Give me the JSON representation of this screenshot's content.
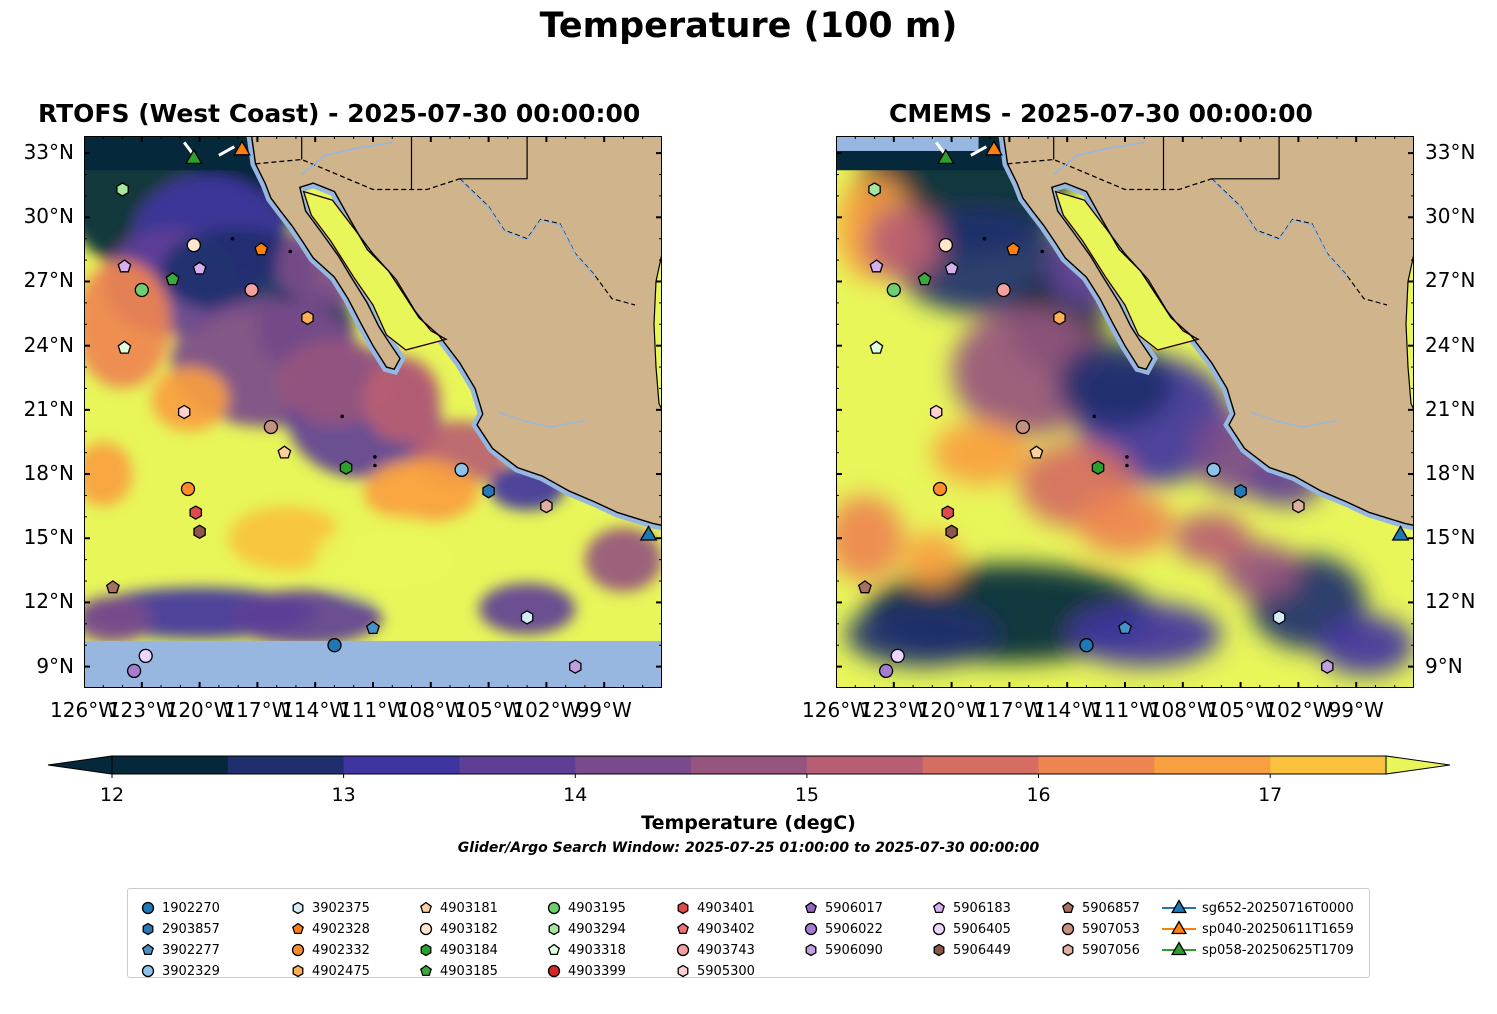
{
  "title": "Temperature (100 m)",
  "panels": [
    {
      "id": "rtofs",
      "title": "RTOFS (West Coast) - 2025-07-30 00:00:00"
    },
    {
      "id": "cmems",
      "title": "CMEMS - 2025-07-30 00:00:00"
    }
  ],
  "map_extent": {
    "lon_min": -126,
    "lon_max": -96,
    "lat_min": 8.0,
    "lat_max": 33.8
  },
  "lat_ticks": [
    "33°N",
    "30°N",
    "27°N",
    "24°N",
    "21°N",
    "18°N",
    "15°N",
    "12°N",
    "9°N"
  ],
  "lon_ticks": [
    "126°W",
    "123°W",
    "120°W",
    "117°W",
    "114°W",
    "111°W",
    "108°W",
    "105°W",
    "102°W",
    "99°W"
  ],
  "colorbar": {
    "label": "Temperature (degC)",
    "ticks": [
      "12",
      "13",
      "14",
      "15",
      "16",
      "17"
    ],
    "min": 12.0,
    "max": 17.5,
    "step": 0.5,
    "colors": [
      "#06283b",
      "#1f2f6e",
      "#3f35a0",
      "#5e3f96",
      "#7a4b8a",
      "#96557e",
      "#b85e72",
      "#d56d62",
      "#ee8550",
      "#f8a03f",
      "#f9c13d",
      "#e8f65a"
    ]
  },
  "search_window": "Glider/Argo Search Window: 2025-07-25 01:00:00 to 2025-07-30 00:00:00",
  "legend": {
    "items": [
      {
        "label": "1902270",
        "marker": "circle",
        "color": "#1f77b4"
      },
      {
        "label": "2903857",
        "marker": "hexagon",
        "color": "#2878b8"
      },
      {
        "label": "3902277",
        "marker": "pentagon",
        "color": "#4a90c8"
      },
      {
        "label": "3902329",
        "marker": "circle",
        "color": "#8ec2ea"
      },
      {
        "label": "3902375",
        "marker": "hexagon",
        "color": "#d4ecf8"
      },
      {
        "label": "4902328",
        "marker": "pentagon",
        "color": "#ff7f0e"
      },
      {
        "label": "4902332",
        "marker": "circle",
        "color": "#ff8c2a"
      },
      {
        "label": "4902475",
        "marker": "hexagon",
        "color": "#ffb055"
      },
      {
        "label": "4903181",
        "marker": "pentagon",
        "color": "#ffd0a0"
      },
      {
        "label": "4903182",
        "marker": "circle",
        "color": "#ffe6cc"
      },
      {
        "label": "4903184",
        "marker": "hexagon",
        "color": "#2ca02c"
      },
      {
        "label": "4903185",
        "marker": "pentagon",
        "color": "#3aaa3a"
      },
      {
        "label": "4903195",
        "marker": "circle",
        "color": "#6fcf6f"
      },
      {
        "label": "4903294",
        "marker": "hexagon",
        "color": "#a8e6a0"
      },
      {
        "label": "4903318",
        "marker": "pentagon",
        "color": "#e0ffe0"
      },
      {
        "label": "4903399",
        "marker": "circle",
        "color": "#d62728"
      },
      {
        "label": "4903401",
        "marker": "hexagon",
        "color": "#e04a4a"
      },
      {
        "label": "4903402",
        "marker": "pentagon",
        "color": "#f07070"
      },
      {
        "label": "4903743",
        "marker": "circle",
        "color": "#f4a0a0"
      },
      {
        "label": "5905300",
        "marker": "hexagon",
        "color": "#ffd0d0"
      },
      {
        "label": "5906017",
        "marker": "pentagon",
        "color": "#9467bd"
      },
      {
        "label": "5906022",
        "marker": "circle",
        "color": "#a67cd0"
      },
      {
        "label": "5906090",
        "marker": "hexagon",
        "color": "#c0a0e0"
      },
      {
        "label": "5906183",
        "marker": "pentagon",
        "color": "#d4b0f0"
      },
      {
        "label": "5906405",
        "marker": "circle",
        "color": "#ecd6ff"
      },
      {
        "label": "5906449",
        "marker": "hexagon",
        "color": "#8c564b"
      },
      {
        "label": "5906857",
        "marker": "pentagon",
        "color": "#a87060"
      },
      {
        "label": "5907053",
        "marker": "circle",
        "color": "#c49080"
      },
      {
        "label": "5907056",
        "marker": "hexagon",
        "color": "#e0b0a0"
      },
      {
        "label": "sg652-20250716T0000",
        "marker": "glider",
        "color": "#1f77b4"
      },
      {
        "label": "sp040-20250611T1659",
        "marker": "glider",
        "color": "#ff7f0e"
      },
      {
        "label": "sp058-20250625T1709",
        "marker": "glider",
        "color": "#2ca02c"
      }
    ]
  },
  "floats": [
    {
      "id": "1902270",
      "lon": -113.0,
      "lat": 10.0
    },
    {
      "id": "2903857",
      "lon": -105.0,
      "lat": 17.2
    },
    {
      "id": "3902277",
      "lon": -111.0,
      "lat": 10.8
    },
    {
      "id": "3902329",
      "lon": -106.4,
      "lat": 18.2
    },
    {
      "id": "3902375",
      "lon": -103.0,
      "lat": 11.3
    },
    {
      "id": "4902328",
      "lon": -116.8,
      "lat": 28.5
    },
    {
      "id": "4902332",
      "lon": -120.6,
      "lat": 17.3
    },
    {
      "id": "4902475",
      "lon": -114.4,
      "lat": 25.3
    },
    {
      "id": "4903181",
      "lon": -115.6,
      "lat": 19.0
    },
    {
      "id": "4903182",
      "lon": -120.3,
      "lat": 28.7
    },
    {
      "id": "4903184",
      "lon": -112.4,
      "lat": 18.3
    },
    {
      "id": "4903185",
      "lon": -121.4,
      "lat": 27.1
    },
    {
      "id": "4903195",
      "lon": -123.0,
      "lat": 26.6
    },
    {
      "id": "4903294",
      "lon": -124.0,
      "lat": 31.3
    },
    {
      "id": "4903318",
      "lon": -123.9,
      "lat": 23.9
    },
    {
      "id": "4903401",
      "lon": -120.2,
      "lat": 16.2
    },
    {
      "id": "4903743",
      "lon": -117.3,
      "lat": 26.6
    },
    {
      "id": "5905300",
      "lon": -120.8,
      "lat": 20.9
    },
    {
      "id": "5906183",
      "lon": -120.0,
      "lat": 27.6
    },
    {
      "id": "5906183b",
      "lon": -123.9,
      "lat": 27.7
    },
    {
      "id": "5906405",
      "lon": -122.8,
      "lat": 9.5
    },
    {
      "id": "5906090",
      "lon": -100.5,
      "lat": 9.0
    },
    {
      "id": "5906449",
      "lon": -120.0,
      "lat": 15.3
    },
    {
      "id": "5906857",
      "lon": -124.5,
      "lat": 12.7
    },
    {
      "id": "5907053",
      "lon": -116.3,
      "lat": 20.2
    },
    {
      "id": "5907056",
      "lon": -102.0,
      "lat": 16.5
    },
    {
      "id": "5906022",
      "lon": -123.4,
      "lat": 8.8
    }
  ],
  "gliders": [
    {
      "id": "sg652-20250716T0000",
      "lon": -96.7,
      "lat": 15.2
    },
    {
      "id": "sp040-20250611T1659",
      "lon": -117.8,
      "lat": 33.2
    },
    {
      "id": "sp058-20250625T1709",
      "lon": -120.3,
      "lat": 32.8
    }
  ]
}
